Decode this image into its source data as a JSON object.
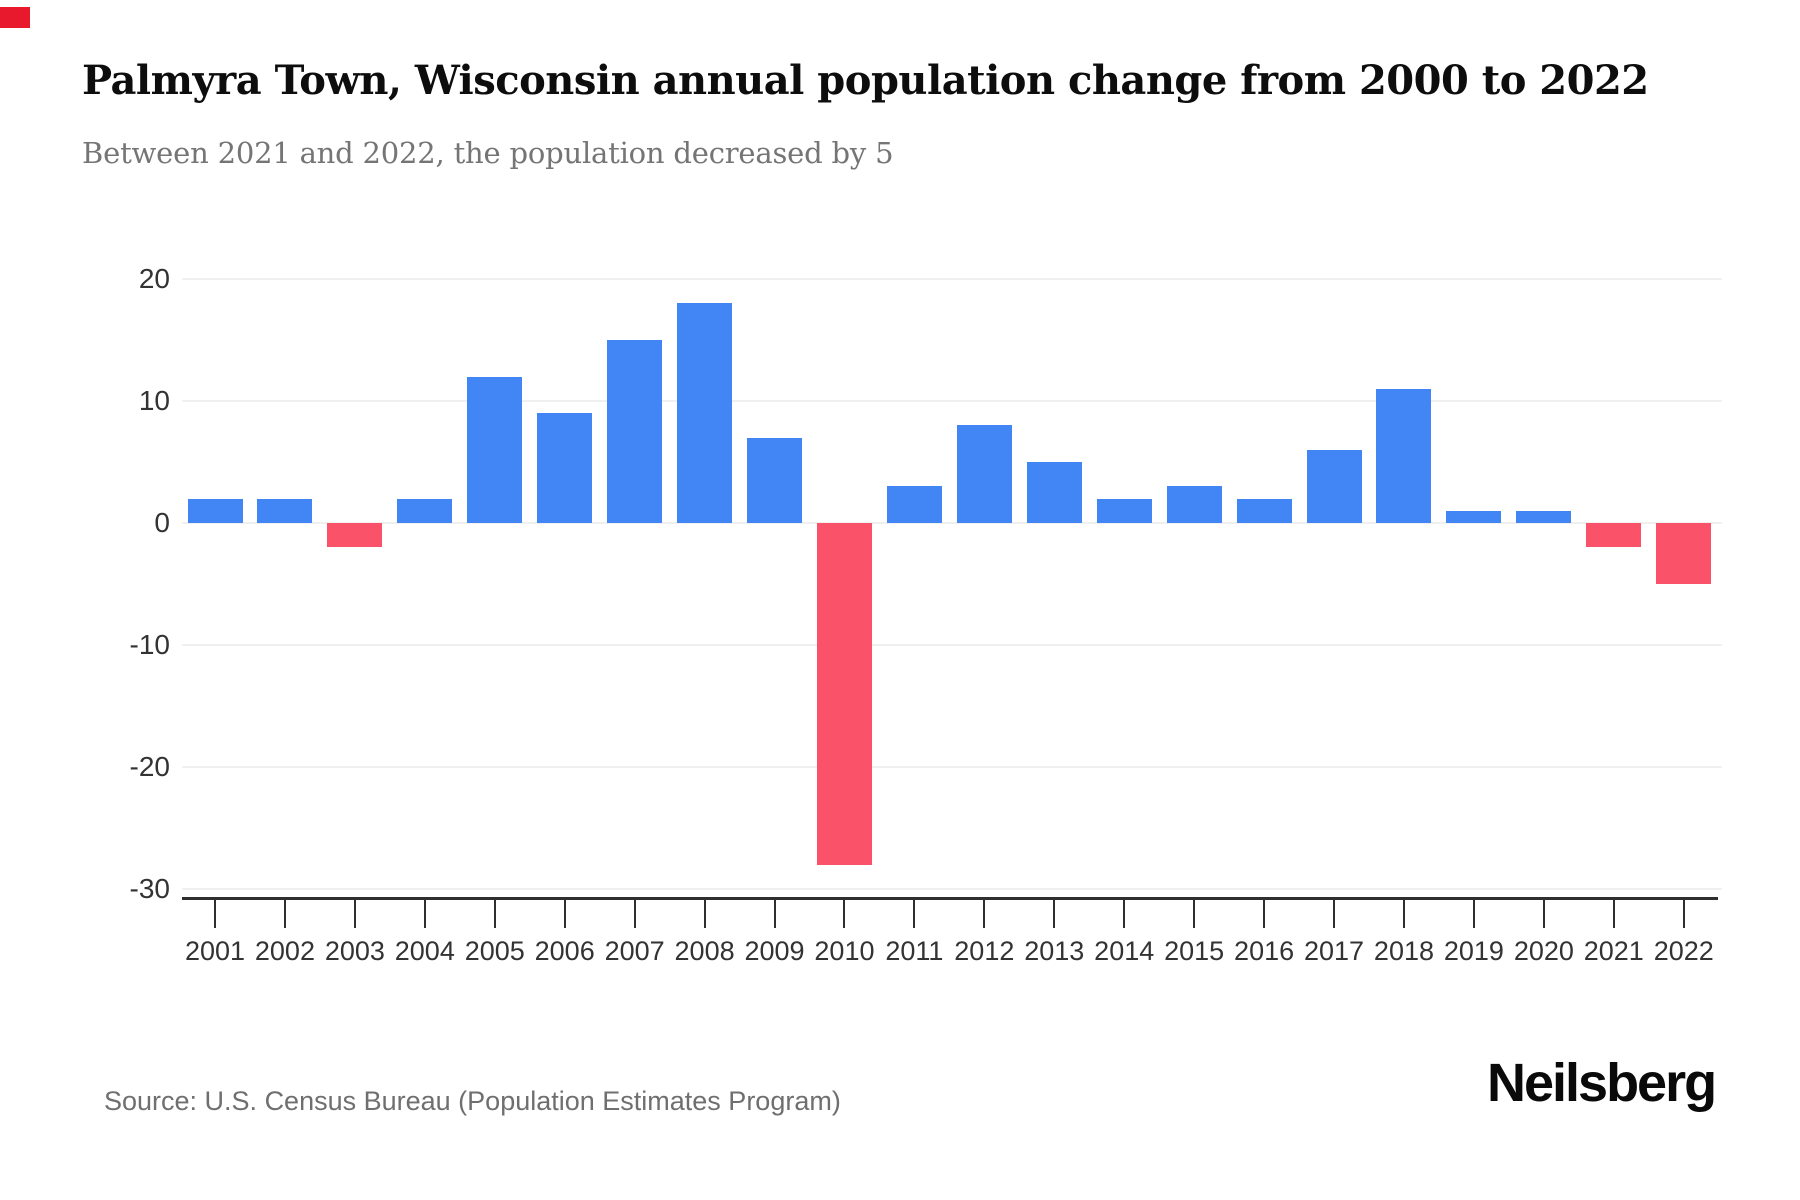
{
  "decorations": {
    "corner_marker_color": "#e8192c"
  },
  "header": {
    "title": "Palmyra Town, Wisconsin annual population change from 2000 to 2022",
    "subtitle": "Between 2021 and 2022, the population decreased by 5"
  },
  "chart_data": {
    "type": "bar",
    "title": "Palmyra Town, Wisconsin annual population change from 2000 to 2022",
    "subtitle": "Between 2021 and 2022, the population decreased by 5",
    "categories": [
      "2001",
      "2002",
      "2003",
      "2004",
      "2005",
      "2006",
      "2007",
      "2008",
      "2009",
      "2010",
      "2011",
      "2012",
      "2013",
      "2014",
      "2015",
      "2016",
      "2017",
      "2018",
      "2019",
      "2020",
      "2021",
      "2022"
    ],
    "values": [
      2,
      2,
      -2,
      2,
      12,
      9,
      15,
      18,
      7,
      -28,
      3,
      8,
      5,
      2,
      3,
      2,
      6,
      11,
      1,
      1,
      -2,
      -5
    ],
    "xlabel": "",
    "ylabel": "",
    "ylim": [
      -30,
      20
    ],
    "yticks": [
      20,
      10,
      0,
      -10,
      -20,
      -30
    ],
    "ytick_labels": [
      "20",
      "10",
      "0",
      "-10",
      "-20",
      "-30"
    ],
    "grid": true,
    "legend": false,
    "colors": {
      "bar_positive": "#4285f4",
      "bar_negative": "#fa5268",
      "gridline": "#f0f0f0",
      "axis_line": "#2f2f2f",
      "tick_label": "#333333"
    }
  },
  "footer": {
    "source": "Source: U.S. Census Bureau (Population Estimates Program)",
    "brand": "Neilsberg"
  }
}
